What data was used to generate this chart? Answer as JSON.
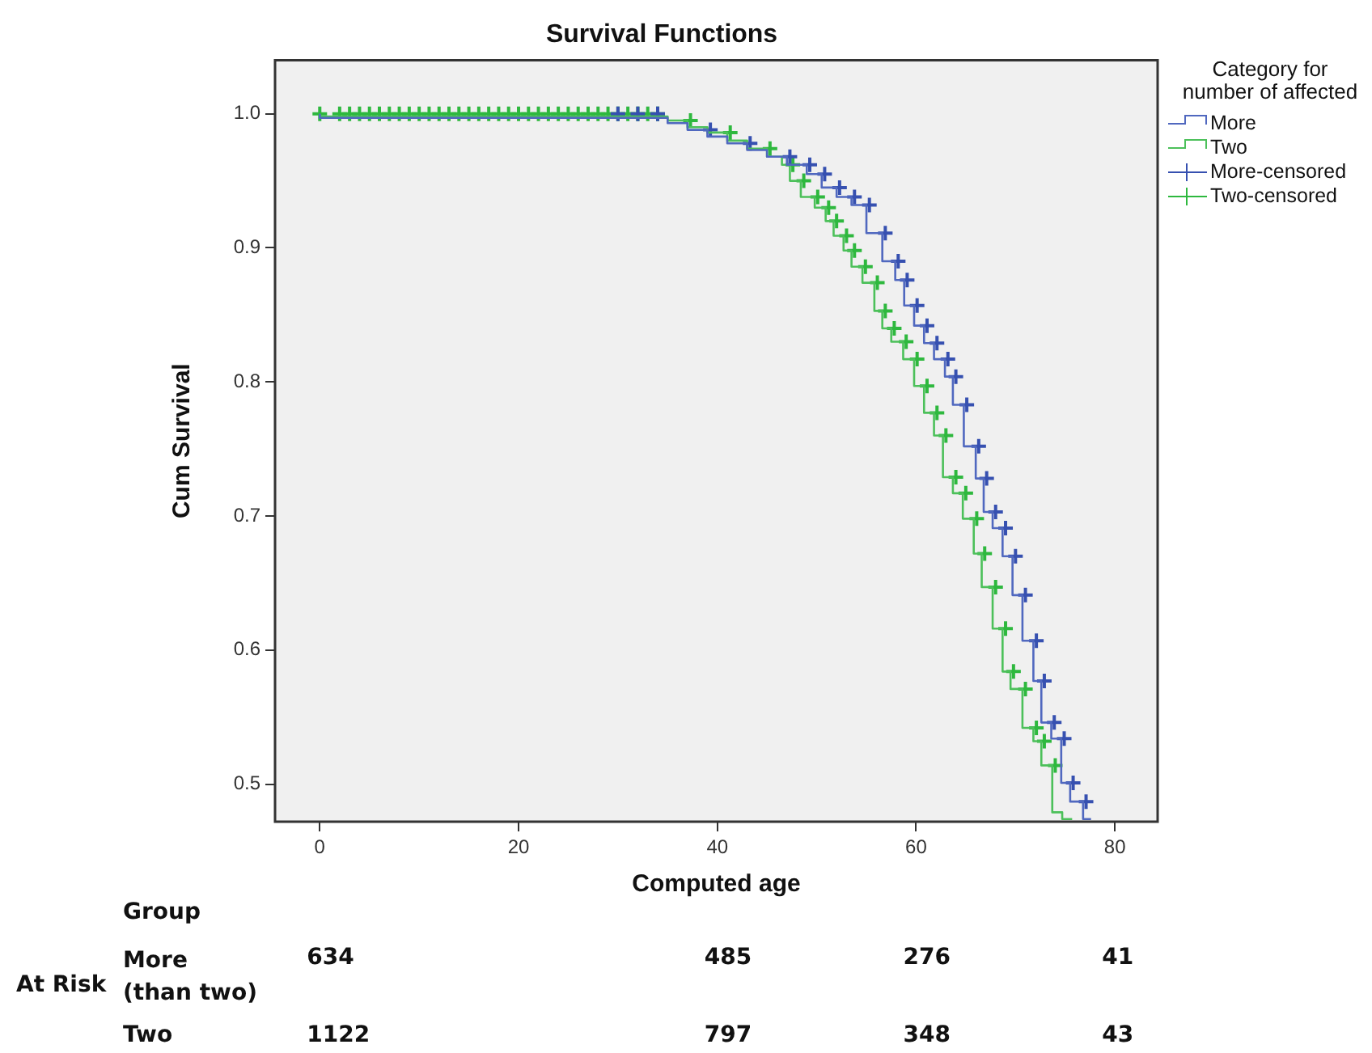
{
  "chart_data": {
    "type": "step",
    "title": "Survival Functions",
    "xlabel": "Computed age",
    "ylabel": "Cum Survival",
    "legend_title": "Category for number of affected",
    "legend": "top right",
    "grid": false,
    "xlim": [
      -4.5,
      84.3
    ],
    "xticks": [
      0,
      20,
      40,
      60,
      80
    ],
    "ylim": [
      0.472,
      1.04
    ],
    "yticks": [
      {
        "value": 0.5,
        "label": "0.5"
      },
      {
        "value": 0.6,
        "label": "0.6"
      },
      {
        "value": 0.7,
        "label": "0.7"
      },
      {
        "value": 0.8,
        "label": "0.8"
      },
      {
        "value": 0.9,
        "label": "0.9"
      },
      {
        "value": 1,
        "label": "1.0"
      }
    ],
    "series": [
      {
        "name": "More",
        "color": "#5068bf",
        "x": [
          0,
          35,
          37,
          39,
          41,
          43,
          45,
          47,
          49,
          50.5,
          52,
          53.5,
          55,
          56.6,
          57.9,
          58.8,
          59.8,
          60.8,
          61.8,
          62.9,
          63.7,
          64.8,
          66,
          66.8,
          67.7,
          68.7,
          69.7,
          70.7,
          71.8,
          72.6,
          73.6,
          74.6,
          75.5,
          76.8,
          77.6
        ],
        "values": [
          1,
          0.997,
          0.993,
          0.988,
          0.983,
          0.978,
          0.973,
          0.968,
          0.962,
          0.955,
          0.945,
          0.938,
          0.932,
          0.911,
          0.89,
          0.876,
          0.857,
          0.842,
          0.829,
          0.817,
          0.804,
          0.783,
          0.752,
          0.728,
          0.703,
          0.691,
          0.67,
          0.641,
          0.607,
          0.577,
          0.546,
          0.534,
          0.501,
          0.487,
          0.474
        ]
      },
      {
        "name": "Two",
        "color": "#4cc05a",
        "x": [
          0,
          35,
          37,
          39,
          41,
          43,
          45,
          46.5,
          47.3,
          48.4,
          49.8,
          50.9,
          51.7,
          52.7,
          53.5,
          54.6,
          55.8,
          56.6,
          57.5,
          58.7,
          59.8,
          60.8,
          61.8,
          62.7,
          63.7,
          64.7,
          65.8,
          66.6,
          67.7,
          68.7,
          69.5,
          70.7,
          71.8,
          72.6,
          73.7,
          74.7,
          75.7
        ],
        "values": [
          1,
          0.998,
          0.995,
          0.99,
          0.986,
          0.98,
          0.974,
          0.968,
          0.962,
          0.95,
          0.938,
          0.93,
          0.92,
          0.909,
          0.898,
          0.886,
          0.874,
          0.853,
          0.84,
          0.83,
          0.817,
          0.797,
          0.777,
          0.76,
          0.729,
          0.717,
          0.698,
          0.672,
          0.647,
          0.616,
          0.584,
          0.571,
          0.542,
          0.532,
          0.514,
          0.479,
          0.474
        ]
      },
      {
        "name": "More-censored",
        "type": "scatter",
        "marker": "cross",
        "color": "#3650b0",
        "x": [
          30,
          32,
          34,
          39.3,
          43.3,
          47.3,
          49.3,
          50.8,
          52.3,
          53.8,
          55.3,
          56.9,
          58.2,
          59.1,
          60.1,
          61.1,
          62.1,
          63.2,
          64,
          65.1,
          66.3,
          67.1,
          68,
          69,
          70,
          71,
          72.1,
          72.9,
          73.9,
          74.9,
          75.8,
          77.1
        ],
        "values": [
          1,
          1,
          1,
          0.988,
          0.978,
          0.968,
          0.962,
          0.955,
          0.945,
          0.938,
          0.932,
          0.911,
          0.89,
          0.876,
          0.857,
          0.842,
          0.829,
          0.817,
          0.804,
          0.783,
          0.752,
          0.728,
          0.703,
          0.691,
          0.67,
          0.641,
          0.607,
          0.577,
          0.546,
          0.534,
          0.501,
          0.487
        ]
      },
      {
        "name": "Two-censored",
        "type": "scatter",
        "marker": "cross",
        "color": "#2eb83e",
        "x": [
          0,
          2,
          3,
          4,
          5,
          6,
          7,
          8,
          9,
          10,
          11,
          12,
          13,
          14,
          15,
          16,
          17,
          18,
          19,
          20,
          21,
          22,
          23,
          24,
          25,
          26,
          27,
          28,
          29,
          30,
          31,
          32,
          33,
          34,
          37.3,
          41.3,
          45.3,
          47.6,
          48.7,
          50.1,
          51.2,
          52,
          53,
          53.8,
          54.9,
          56.1,
          56.9,
          57.8,
          59,
          60.1,
          61.1,
          62.1,
          63,
          64,
          65,
          66.1,
          66.9,
          68,
          69,
          69.8,
          71,
          72.1,
          72.9,
          74
        ],
        "values": [
          1,
          1,
          1,
          1,
          1,
          1,
          1,
          1,
          1,
          1,
          1,
          1,
          1,
          1,
          1,
          1,
          1,
          1,
          1,
          1,
          1,
          1,
          1,
          1,
          1,
          1,
          1,
          1,
          1,
          1,
          1,
          1,
          1,
          1,
          0.995,
          0.986,
          0.974,
          0.962,
          0.95,
          0.938,
          0.93,
          0.92,
          0.909,
          0.898,
          0.886,
          0.874,
          0.853,
          0.84,
          0.83,
          0.817,
          0.797,
          0.777,
          0.76,
          0.729,
          0.717,
          0.698,
          0.672,
          0.647,
          0.616,
          0.584,
          0.571,
          0.542,
          0.532,
          0.514
        ]
      }
    ],
    "annotations": [
      "Group",
      "At Risk",
      "More (than two)",
      "Two",
      "634",
      "485",
      "276",
      "41",
      "1122",
      "797",
      "348",
      "43"
    ]
  }
}
